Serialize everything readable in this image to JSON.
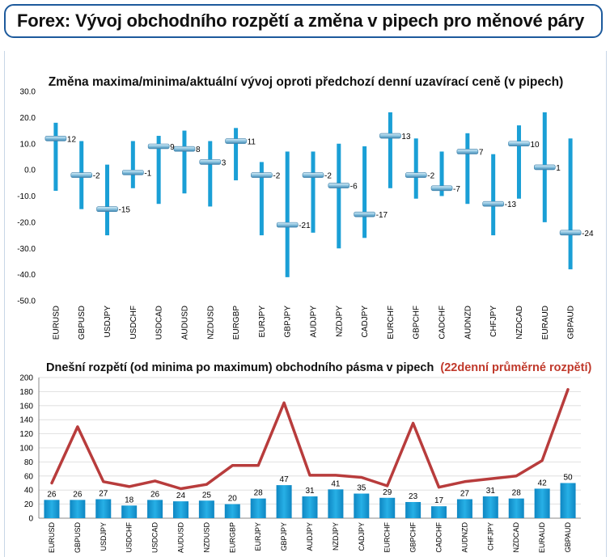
{
  "header": {
    "title": "Forex: Vývoj obchodního rozpětí a změna v pipech pro měnové páry"
  },
  "colors": {
    "bar": "#1a9fd6",
    "bar_dark": "#0b7bb3",
    "marker": "#7fb8d8",
    "line": "#b83c3c",
    "header_border": "#1d5a9c",
    "highlight": "#c0392b"
  },
  "chart_data": [
    {
      "type": "range",
      "title": "Změna maxima/minima/aktuální vývoj oproti předchozí denní uzavírací ceně (v pipech)",
      "ylim": [
        -50,
        30
      ],
      "yticks": [
        "30.0",
        "20.0",
        "10.0",
        "0.0",
        "-10.0",
        "-20.0",
        "-30.0",
        "-40.0",
        "-50.0"
      ],
      "categories": [
        "EURUSD",
        "GBPUSD",
        "USDJPY",
        "USDCHF",
        "USDCAD",
        "AUDUSD",
        "NZDUSD",
        "EURGBP",
        "EURJPY",
        "GBPJPY",
        "AUDJPY",
        "NZDJPY",
        "CADJPY",
        "EURCHF",
        "GBPCHF",
        "CADCHF",
        "AUDNZD",
        "CHFJPY",
        "NZDCAD",
        "EURAUD",
        "GBPAUD"
      ],
      "high": [
        18,
        11,
        2,
        11,
        13,
        15,
        11,
        16,
        3,
        7,
        7,
        10,
        9,
        22,
        12,
        7,
        14,
        6,
        17,
        22,
        12
      ],
      "low": [
        -8,
        -15,
        -25,
        -7,
        -13,
        -9,
        -14,
        -4,
        -25,
        -41,
        -24,
        -30,
        -26,
        -7,
        -11,
        -10,
        -13,
        -25,
        -11,
        -20,
        -38
      ],
      "current": [
        12,
        -2,
        -15,
        -1,
        9,
        8,
        3,
        11,
        -2,
        -21,
        -2,
        -6,
        -17,
        13,
        -2,
        -7,
        7,
        -13,
        10,
        1,
        -24
      ],
      "labels": [
        "12",
        "-2",
        "-15",
        "-1",
        "9",
        "8",
        "3",
        "11",
        "-2",
        "-21",
        "-2",
        "-6",
        "-17",
        "13",
        "-2",
        "-7",
        "7",
        "-13",
        "10",
        "1",
        "-24"
      ]
    },
    {
      "type": "bar+line",
      "title": "Dnešní rozpětí (od minima po maximum) obchodního pásma v pipech",
      "title_highlight": "(22denní průměrné rozpětí)",
      "ylim": [
        0,
        200
      ],
      "yticks": [
        "200",
        "180",
        "160",
        "140",
        "120",
        "100",
        "80",
        "60",
        "40",
        "20",
        "0"
      ],
      "categories": [
        "EURUSD",
        "GBPUSD",
        "USDJPY",
        "USDCHF",
        "USDCAD",
        "AUDUSD",
        "NZDUSD",
        "EURGBP",
        "EURJPY",
        "GBPJPY",
        "AUDJPY",
        "NZDJPY",
        "CADJPY",
        "EURCHF",
        "GBPCHF",
        "CADCHF",
        "AUDNZD",
        "CHFJPY",
        "NZDCAD",
        "EURAUD",
        "GBPAUD"
      ],
      "values": [
        26,
        26,
        27,
        18,
        26,
        24,
        25,
        20,
        28,
        47,
        31,
        41,
        35,
        29,
        23,
        17,
        27,
        31,
        28,
        42,
        50
      ],
      "labels": [
        "26",
        "26",
        "27",
        "18",
        "26",
        "24",
        "25",
        "20",
        "28",
        "47",
        "31",
        "41",
        "35",
        "29",
        "23",
        "17",
        "27",
        "31",
        "28",
        "42",
        "50"
      ],
      "avg_range": [
        50,
        130,
        52,
        45,
        53,
        42,
        48,
        75,
        75,
        164,
        61,
        61,
        58,
        46,
        135,
        44,
        52,
        56,
        60,
        82,
        183
      ]
    }
  ]
}
